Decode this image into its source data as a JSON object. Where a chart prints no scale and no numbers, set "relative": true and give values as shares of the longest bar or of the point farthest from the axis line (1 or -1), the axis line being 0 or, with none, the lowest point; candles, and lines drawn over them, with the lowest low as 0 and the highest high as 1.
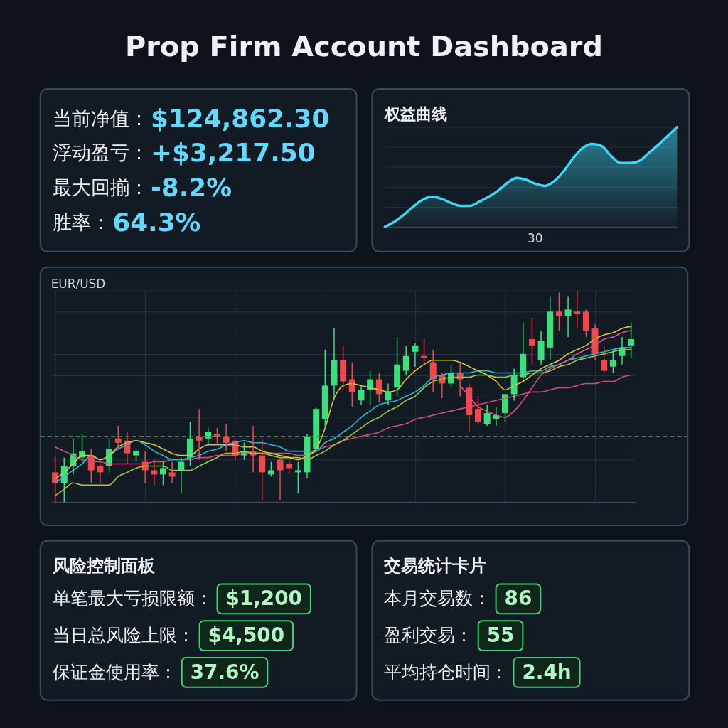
{
  "chart_data": [
    {
      "type": "other",
      "title": "Prop Firm Account Dashboard"
    },
    {
      "type": "other",
      "annotations": [
        "当前净值：",
        "$124,862.30",
        "浮动盈亏：",
        "+$3,217.50",
        "最大回揃：",
        "-8.2%",
        "胜率：",
        "64.3%"
      ]
    },
    {
      "type": "area",
      "title": "权益曲线",
      "relative": true,
      "grid": "y",
      "annotations": [
        "30"
      ],
      "categories": [
        null,
        null,
        null,
        null,
        null,
        null,
        null,
        null,
        null,
        null,
        null,
        null,
        null,
        null,
        null,
        null,
        null,
        null,
        null,
        null,
        null,
        null,
        null,
        null,
        null,
        null,
        null,
        null,
        null,
        null,
        null,
        null
      ],
      "series": [
        {
          "color": "#3fd6f5",
          "values": [
            0,
            0.05,
            0.12,
            0.2,
            0.27,
            0.3,
            0.28,
            0.24,
            0.21,
            0.21,
            0.25,
            0.3,
            0.36,
            0.44,
            0.49,
            0.47,
            0.43,
            0.41,
            0.46,
            0.56,
            0.69,
            0.79,
            0.83,
            0.81,
            0.71,
            0.64,
            0.64,
            0.66,
            0.74,
            0.82,
            0.91,
            1
          ]
        }
      ]
    },
    {
      "type": "candlestick",
      "title": "EUR/USD",
      "relative": true,
      "grid": true,
      "categories": [
        null,
        null,
        null,
        null,
        null,
        null,
        null,
        null,
        null,
        null,
        null,
        null,
        null,
        null,
        null,
        null,
        null,
        null,
        null,
        null,
        null,
        null,
        null,
        null,
        null,
        null,
        null,
        null,
        null,
        null,
        null,
        null,
        null,
        null,
        null,
        null,
        null,
        null,
        null,
        null,
        null,
        null,
        null,
        null,
        null,
        null,
        null,
        null,
        null,
        null,
        null,
        null,
        null,
        null,
        null,
        null,
        null,
        null,
        null,
        null,
        null,
        null,
        null,
        null,
        null
      ],
      "ohlc": [
        [
          0.14,
          0.22,
          0,
          0.09
        ],
        [
          0.09,
          0.21,
          0,
          0.17
        ],
        [
          0.17,
          0.3,
          0.13,
          0.23
        ],
        [
          0.21,
          0.32,
          0.19,
          0.24
        ],
        [
          0.22,
          0.25,
          0.09,
          0.15
        ],
        [
          0.17,
          0.19,
          0.09,
          0.14
        ],
        [
          0.17,
          0.3,
          0.14,
          0.25
        ],
        [
          0.3,
          0.36,
          0.25,
          0.28
        ],
        [
          0.29,
          0.33,
          0.18,
          0.23
        ],
        [
          0.22,
          0.25,
          0.19,
          0.24
        ],
        [
          0.19,
          0.24,
          0.09,
          0.15
        ],
        [
          0.15,
          0.2,
          0.08,
          0.13
        ],
        [
          0.13,
          0.19,
          0.08,
          0.16
        ],
        [
          0.14,
          0.19,
          0.09,
          0.12
        ],
        [
          0.15,
          0.21,
          0.04,
          0.19
        ],
        [
          0.21,
          0.38,
          0.17,
          0.3
        ],
        [
          0.31,
          0.44,
          0.2,
          0.29
        ],
        [
          0.3,
          0.35,
          0.27,
          0.33
        ],
        [
          0.32,
          0.35,
          0.27,
          0.31
        ],
        [
          0.31,
          0.37,
          0.24,
          0.28
        ],
        [
          0.29,
          0.3,
          0.2,
          0.22
        ],
        [
          0.22,
          0.28,
          0.2,
          0.24
        ],
        [
          0.24,
          0.36,
          0.14,
          0.22
        ],
        [
          0.22,
          0.3,
          0.01,
          0.14
        ],
        [
          0.13,
          0.19,
          0.12,
          0.15
        ],
        [
          0.2,
          0.21,
          0.01,
          0.15
        ],
        [
          0.18,
          0.2,
          0.13,
          0.16
        ],
        [
          0.14,
          0.19,
          0.04,
          0.15
        ],
        [
          0.14,
          0.32,
          0.11,
          0.31
        ],
        [
          0.25,
          0.45,
          0.24,
          0.44
        ],
        [
          0.39,
          0.72,
          0.35,
          0.55
        ],
        [
          0.55,
          0.82,
          0.49,
          0.67
        ],
        [
          0.67,
          0.74,
          0.54,
          0.57
        ],
        [
          0.58,
          0.66,
          0.45,
          0.52
        ],
        [
          0.48,
          0.55,
          0.46,
          0.53
        ],
        [
          0.53,
          0.62,
          0.46,
          0.58
        ],
        [
          0.58,
          0.61,
          0.47,
          0.51
        ],
        [
          0.48,
          0.56,
          0.46,
          0.52
        ],
        [
          0.54,
          0.78,
          0.5,
          0.65
        ],
        [
          0.62,
          0.74,
          0.6,
          0.69
        ],
        [
          0.71,
          0.75,
          0.64,
          0.74
        ],
        [
          0.69,
          0.77,
          0.65,
          0.68
        ],
        [
          0.66,
          0.72,
          0.52,
          0.58
        ],
        [
          0.6,
          0.61,
          0.49,
          0.56
        ],
        [
          0.56,
          0.65,
          0.54,
          0.61
        ],
        [
          0.61,
          0.66,
          0.5,
          0.58
        ],
        [
          0.54,
          0.56,
          0.33,
          0.41
        ],
        [
          0.44,
          0.5,
          0.37,
          0.38
        ],
        [
          0.37,
          0.46,
          0.36,
          0.42
        ],
        [
          0.39,
          0.45,
          0.36,
          0.41
        ],
        [
          0.42,
          0.51,
          0.38,
          0.51
        ],
        [
          0.51,
          0.63,
          0.48,
          0.6
        ],
        [
          0.59,
          0.85,
          0.57,
          0.7
        ],
        [
          0.77,
          0.87,
          0.65,
          0.74
        ],
        [
          0.67,
          0.81,
          0.65,
          0.76
        ],
        [
          0.73,
          0.97,
          0.67,
          0.9
        ],
        [
          0.9,
          0.99,
          0.81,
          0.88
        ],
        [
          0.88,
          0.97,
          0.78,
          0.91
        ],
        [
          0.9,
          1,
          0.82,
          0.89
        ],
        [
          0.9,
          0.91,
          0.78,
          0.81
        ],
        [
          0.82,
          0.84,
          0.67,
          0.7
        ],
        [
          0.67,
          0.74,
          0.61,
          0.62
        ],
        [
          0.64,
          0.72,
          0.61,
          0.67
        ],
        [
          0.69,
          0.78,
          0.65,
          0.73
        ],
        [
          0.74,
          0.85,
          0.68,
          0.77
        ]
      ],
      "colors": [
        "#f2484b",
        "#3be07c",
        "#3be07c",
        "#3be07c",
        "#f2484b",
        "#f2484b",
        "#3be07c",
        "#f2484b",
        "#f2484b",
        "#3be07c",
        "#f2484b",
        "#f2484b",
        "#3be07c",
        "#f2484b",
        "#3be07c",
        "#3be07c",
        "#f2484b",
        "#3be07c",
        "#f2484b",
        "#f2484b",
        "#f2484b",
        "#3be07c",
        "#f2484b",
        "#f2484b",
        "#3be07c",
        "#f2484b",
        "#f2484b",
        "#3be07c",
        "#3be07c",
        "#3be07c",
        "#3be07c",
        "#3be07c",
        "#f2484b",
        "#f2484b",
        "#3be07c",
        "#3be07c",
        "#f2484b",
        "#3be07c",
        "#3be07c",
        "#3be07c",
        "#3be07c",
        "#f2484b",
        "#f2484b",
        "#f2484b",
        "#3be07c",
        "#f2484b",
        "#f2484b",
        "#f2484b",
        "#3be07c",
        "#3be07c",
        "#3be07c",
        "#3be07c",
        "#3be07c",
        "#f2484b",
        "#3be07c",
        "#3be07c",
        "#f2484b",
        "#3be07c",
        "#f2484b",
        "#f2484b",
        "#f2484b",
        "#f2484b",
        "#3be07c",
        "#3be07c",
        "#3be07c"
      ],
      "series": [
        {
          "type": "line",
          "color": "#d9487a",
          "values": [
            0.26,
            0.24,
            0.22,
            0.2,
            0.19,
            0.19,
            0.18,
            0.18,
            0.18,
            0.18,
            0.18,
            0.19,
            0.19,
            0.2,
            0.2,
            0.2,
            0.21,
            0.21,
            0.22,
            0.22,
            0.22,
            0.23,
            0.23,
            0.23,
            0.23,
            0.23,
            0.23,
            0.22,
            0.22,
            0.24,
            0.26,
            0.27,
            0.29,
            0.3,
            0.31,
            0.32,
            0.33,
            0.35,
            0.36,
            0.37,
            0.39,
            0.4,
            0.41,
            0.42,
            0.43,
            0.44,
            0.45,
            0.46,
            0.47,
            0.48,
            0.49,
            0.5,
            0.51,
            0.52,
            0.52,
            0.53,
            0.54,
            0.54,
            0.55,
            0.56,
            0.56,
            0.57,
            0.57,
            0.59,
            0.6
          ]
        },
        {
          "type": "line",
          "color": "#9ccc3a",
          "values": [
            0.03,
            0.06,
            0.09,
            0.08,
            0.08,
            0.08,
            0.08,
            0.12,
            0.14,
            0.16,
            0.17,
            0.17,
            0.17,
            0.15,
            0.15,
            0.15,
            0.17,
            0.19,
            0.21,
            0.23,
            0.23,
            0.24,
            0.23,
            0.23,
            0.22,
            0.21,
            0.21,
            0.21,
            0.2,
            0.22,
            0.24,
            0.27,
            0.29,
            0.32,
            0.35,
            0.38,
            0.4,
            0.43,
            0.45,
            0.48,
            0.5,
            0.54,
            0.57,
            0.58,
            0.59,
            0.59,
            0.59,
            0.6,
            0.6,
            0.59,
            0.59,
            0.6,
            0.6,
            0.61,
            0.61,
            0.62,
            0.64,
            0.65,
            0.67,
            0.68,
            0.69,
            0.7,
            0.71,
            0.72,
            0.72
          ]
        },
        {
          "type": "line",
          "color": "#2bb8d8",
          "values": [
            0.09,
            0.12,
            0.15,
            0.18,
            0.22,
            0.2,
            0.22,
            0.25,
            0.27,
            0.29,
            0.27,
            0.24,
            0.22,
            0.2,
            0.2,
            0.21,
            0.22,
            0.24,
            0.25,
            0.27,
            0.28,
            0.29,
            0.28,
            0.28,
            0.27,
            0.26,
            0.24,
            0.24,
            0.24,
            0.24,
            0.28,
            0.3,
            0.33,
            0.36,
            0.4,
            0.43,
            0.46,
            0.47,
            0.48,
            0.5,
            0.52,
            0.55,
            0.59,
            0.6,
            0.61,
            0.61,
            0.61,
            0.62,
            0.62,
            0.61,
            0.61,
            0.61,
            0.61,
            0.62,
            0.62,
            0.64,
            0.65,
            0.67,
            0.68,
            0.69,
            0.7,
            0.71,
            0.72,
            0.73,
            0.73
          ]
        },
        {
          "type": "line",
          "color": "#d8c43a",
          "values": [
            0.11,
            0.14,
            0.18,
            0.22,
            0.22,
            0.2,
            0.22,
            0.26,
            0.28,
            0.29,
            0.28,
            0.27,
            0.25,
            0.23,
            0.22,
            0.22,
            0.25,
            0.27,
            0.27,
            0.27,
            0.27,
            0.26,
            0.26,
            0.24,
            0.23,
            0.22,
            0.21,
            0.2,
            0.22,
            0.25,
            0.35,
            0.49,
            0.55,
            0.56,
            0.55,
            0.54,
            0.53,
            0.52,
            0.53,
            0.58,
            0.62,
            0.65,
            0.67,
            0.67,
            0.67,
            0.66,
            0.64,
            0.62,
            0.6,
            0.57,
            0.53,
            0.55,
            0.57,
            0.6,
            0.63,
            0.65,
            0.67,
            0.7,
            0.72,
            0.74,
            0.77,
            0.79,
            0.8,
            0.82,
            0.83
          ]
        },
        {
          "type": "line",
          "color": "#e0508c",
          "values": [
            null,
            null,
            null,
            null,
            null,
            null,
            null,
            null,
            null,
            null,
            null,
            null,
            null,
            null,
            null,
            null,
            null,
            null,
            null,
            null,
            null,
            null,
            null,
            null,
            null,
            null,
            null,
            null,
            null,
            null,
            null,
            null,
            null,
            null,
            null,
            null,
            null,
            null,
            null,
            null,
            null,
            null,
            null,
            null,
            null,
            0.55,
            0.5,
            0.45,
            0.43,
            0.41,
            0.4,
            0.43,
            0.48,
            0.54,
            0.6,
            0.63,
            0.65,
            0.67,
            0.7,
            0.72,
            0.74,
            0.77,
            0.78,
            0.8,
            0.81
          ]
        }
      ],
      "ref_lines": [
        {
          "axis": "y",
          "value": 0.31,
          "color": "#4f7d3e",
          "line_style": "dashed"
        }
      ]
    },
    {
      "type": "other",
      "title": "风险控制面板",
      "annotations": [
        "单笔最大亏损限额：",
        "$1,200",
        "当日总风险上限：",
        "$4,500",
        "保证金使用率：",
        "37.6%"
      ]
    },
    {
      "type": "other",
      "title": "交易统计卡片",
      "annotations": [
        "本月交易数：",
        "86",
        "盈利交易：",
        "55",
        "平均持仓时间：",
        "2.4h"
      ]
    }
  ]
}
